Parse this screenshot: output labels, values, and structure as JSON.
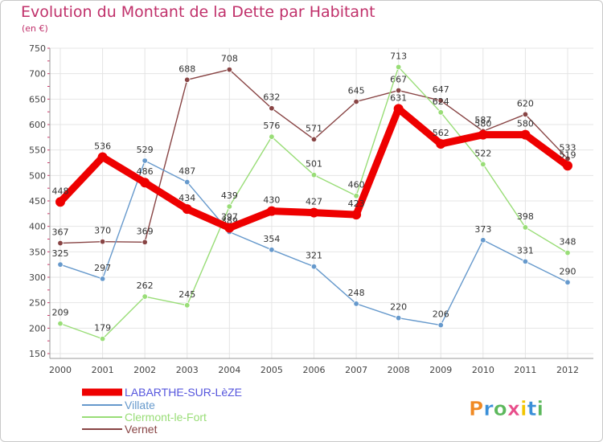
{
  "title": "Evolution du Montant de la Dette par Habitant",
  "subtitle": "(en €)",
  "logo": {
    "text": "Proxiti",
    "colors": [
      "#f08a24",
      "#3a8fd8",
      "#5cb85c",
      "#e84d8a",
      "#f2c500",
      "#3a8fd8",
      "#5cb85c"
    ]
  },
  "chart_data": {
    "type": "line",
    "title": "Evolution du Montant de la Dette par Habitant",
    "ylabel": "(en €)",
    "xlabel": "",
    "x": [
      "2000",
      "2001",
      "2002",
      "2003",
      "2004",
      "2005",
      "2006",
      "2007",
      "2008",
      "2009",
      "2010",
      "2011",
      "2012"
    ],
    "ylim": [
      150,
      750
    ],
    "yticks": [
      150,
      200,
      250,
      300,
      350,
      400,
      450,
      500,
      550,
      600,
      650,
      700,
      750
    ],
    "grid": true,
    "legend_position": "bottom-left",
    "series": [
      {
        "name": "LABARTHE-SUR-LèZE",
        "color": "#ee0000",
        "line_color": "#5555dd",
        "values": [
          448,
          536,
          486,
          434,
          397,
          430,
          427,
          423,
          631,
          562,
          580,
          580,
          519
        ]
      },
      {
        "name": "Villate",
        "color": "#6699cc",
        "values": [
          325,
          297,
          529,
          487,
          389,
          354,
          321,
          248,
          220,
          206,
          373,
          331,
          290
        ]
      },
      {
        "name": "Clermont-le-Fort",
        "color": "#99dd77",
        "values": [
          209,
          179,
          262,
          245,
          439,
          576,
          501,
          460,
          713,
          624,
          522,
          398,
          348
        ]
      },
      {
        "name": "Vernet",
        "color": "#884444",
        "values": [
          367,
          370,
          369,
          688,
          708,
          632,
          571,
          645,
          667,
          647,
          587,
          620,
          533
        ]
      }
    ]
  }
}
